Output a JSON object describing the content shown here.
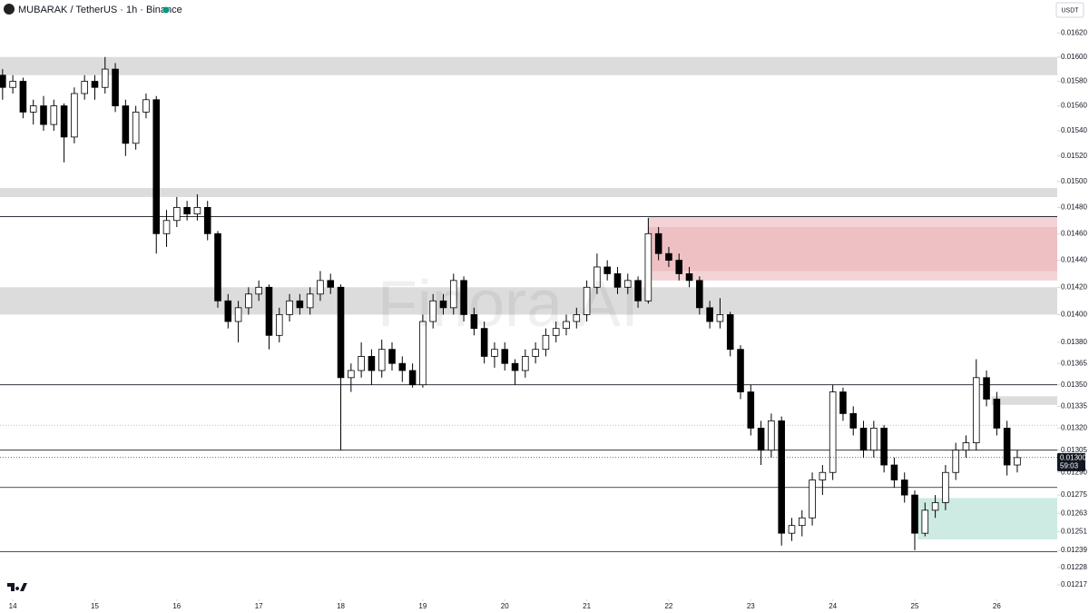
{
  "chart_data": {
    "type": "candlestick",
    "title": "MUBARAK / TetherUS · 1h · Binance",
    "currency": "USDT",
    "watermark": "Finora AI",
    "log_scale": true,
    "ylim": [
      0.01209,
      0.01648
    ],
    "yticks": [
      {
        "value": 0.0162,
        "label": "0.01620"
      },
      {
        "value": 0.016,
        "label": "0.01600"
      },
      {
        "value": 0.0158,
        "label": "0.01580"
      },
      {
        "value": 0.0156,
        "label": "0.01560"
      },
      {
        "value": 0.0154,
        "label": "0.01540"
      },
      {
        "value": 0.0152,
        "label": "0.01520"
      },
      {
        "value": 0.015,
        "label": "0.01500"
      },
      {
        "value": 0.0148,
        "label": "0.01480"
      },
      {
        "value": 0.0146,
        "label": "0.01460"
      },
      {
        "value": 0.0144,
        "label": "0.01440"
      },
      {
        "value": 0.0142,
        "label": "0.01420"
      },
      {
        "value": 0.014,
        "label": "0.01400"
      },
      {
        "value": 0.0138,
        "label": "0.01380"
      },
      {
        "value": 0.01365,
        "label": "0.01365"
      },
      {
        "value": 0.0135,
        "label": "0.01350"
      },
      {
        "value": 0.01335,
        "label": "0.01335"
      },
      {
        "value": 0.0132,
        "label": "0.01320"
      },
      {
        "value": 0.01305,
        "label": "0.01305"
      },
      {
        "value": 0.0129,
        "label": "0.01290"
      },
      {
        "value": 0.01275,
        "label": "0.01275"
      },
      {
        "value": 0.01263,
        "label": "0.01263"
      },
      {
        "value": 0.01251,
        "label": "0.01251"
      },
      {
        "value": 0.01239,
        "label": "0.01239"
      },
      {
        "value": 0.01228,
        "label": "0.01228"
      },
      {
        "value": 0.01217,
        "label": "0.01217"
      }
    ],
    "xlim": [
      -0.25,
      102.9
    ],
    "xticks": [
      {
        "value": 1,
        "label": "14"
      },
      {
        "value": 9,
        "label": "15"
      },
      {
        "value": 17,
        "label": "16"
      },
      {
        "value": 25,
        "label": "17"
      },
      {
        "value": 33,
        "label": "18"
      },
      {
        "value": 41,
        "label": "19"
      },
      {
        "value": 49,
        "label": "20"
      },
      {
        "value": 57,
        "label": "21"
      },
      {
        "value": 65,
        "label": "22"
      },
      {
        "value": 73,
        "label": "23"
      },
      {
        "value": 81,
        "label": "24"
      },
      {
        "value": 89,
        "label": "25"
      },
      {
        "value": 97,
        "label": "26"
      }
    ],
    "up_color": "#ffffff",
    "down_color": "#000000",
    "ohlc": [
      [
        0.01585,
        0.0159,
        0.01565,
        0.01575
      ],
      [
        0.01575,
        0.01585,
        0.0157,
        0.0158
      ],
      [
        0.0158,
        0.01583,
        0.0155,
        0.01555
      ],
      [
        0.01555,
        0.01565,
        0.01545,
        0.0156
      ],
      [
        0.0156,
        0.01568,
        0.0154,
        0.01545
      ],
      [
        0.01545,
        0.01565,
        0.0154,
        0.0156
      ],
      [
        0.0156,
        0.01562,
        0.01515,
        0.01535
      ],
      [
        0.01535,
        0.01575,
        0.0153,
        0.0157
      ],
      [
        0.0157,
        0.01585,
        0.01565,
        0.0158
      ],
      [
        0.0158,
        0.01585,
        0.01565,
        0.01575
      ],
      [
        0.01575,
        0.016,
        0.0157,
        0.0159
      ],
      [
        0.0159,
        0.01595,
        0.01555,
        0.0156
      ],
      [
        0.0156,
        0.01565,
        0.0152,
        0.0153
      ],
      [
        0.0153,
        0.0156,
        0.01525,
        0.01555
      ],
      [
        0.01555,
        0.0157,
        0.0155,
        0.01565
      ],
      [
        0.01565,
        0.01568,
        0.01445,
        0.0146
      ],
      [
        0.0146,
        0.01478,
        0.0145,
        0.0147
      ],
      [
        0.0147,
        0.01488,
        0.01465,
        0.0148
      ],
      [
        0.0148,
        0.01485,
        0.0147,
        0.01475
      ],
      [
        0.01475,
        0.0149,
        0.0147,
        0.0148
      ],
      [
        0.0148,
        0.01485,
        0.01455,
        0.0146
      ],
      [
        0.0146,
        0.01462,
        0.01405,
        0.0141
      ],
      [
        0.0141,
        0.01415,
        0.0139,
        0.01395
      ],
      [
        0.01395,
        0.0141,
        0.0138,
        0.01405
      ],
      [
        0.01405,
        0.0142,
        0.014,
        0.01415
      ],
      [
        0.01415,
        0.01425,
        0.0141,
        0.0142
      ],
      [
        0.0142,
        0.01422,
        0.01375,
        0.01385
      ],
      [
        0.01385,
        0.01405,
        0.0138,
        0.014
      ],
      [
        0.014,
        0.01415,
        0.01395,
        0.0141
      ],
      [
        0.0141,
        0.01415,
        0.014,
        0.01405
      ],
      [
        0.01405,
        0.0142,
        0.014,
        0.01415
      ],
      [
        0.01415,
        0.01432,
        0.0141,
        0.01425
      ],
      [
        0.01425,
        0.0143,
        0.01415,
        0.0142
      ],
      [
        0.0142,
        0.01422,
        0.01305,
        0.01355
      ],
      [
        0.01355,
        0.01365,
        0.01345,
        0.0136
      ],
      [
        0.0136,
        0.0138,
        0.01355,
        0.0137
      ],
      [
        0.0137,
        0.01375,
        0.0135,
        0.0136
      ],
      [
        0.0136,
        0.01382,
        0.01355,
        0.01375
      ],
      [
        0.01375,
        0.0138,
        0.0136,
        0.01365
      ],
      [
        0.01365,
        0.0137,
        0.01352,
        0.0136
      ],
      [
        0.0136,
        0.01365,
        0.01348,
        0.0135
      ],
      [
        0.0135,
        0.014,
        0.01348,
        0.01395
      ],
      [
        0.01395,
        0.01415,
        0.0139,
        0.0141
      ],
      [
        0.0141,
        0.01415,
        0.014,
        0.01405
      ],
      [
        0.01405,
        0.0143,
        0.014,
        0.01425
      ],
      [
        0.01425,
        0.01428,
        0.01395,
        0.014
      ],
      [
        0.014,
        0.01405,
        0.01385,
        0.0139
      ],
      [
        0.0139,
        0.01395,
        0.01365,
        0.0137
      ],
      [
        0.0137,
        0.0138,
        0.01362,
        0.01375
      ],
      [
        0.01375,
        0.0138,
        0.0136,
        0.01365
      ],
      [
        0.01365,
        0.01368,
        0.0135,
        0.0136
      ],
      [
        0.0136,
        0.01375,
        0.01355,
        0.0137
      ],
      [
        0.0137,
        0.0138,
        0.01365,
        0.01375
      ],
      [
        0.01375,
        0.0139,
        0.0137,
        0.01385
      ],
      [
        0.01385,
        0.01395,
        0.0138,
        0.0139
      ],
      [
        0.0139,
        0.014,
        0.01385,
        0.01395
      ],
      [
        0.01395,
        0.01405,
        0.0139,
        0.014
      ],
      [
        0.014,
        0.01425,
        0.01395,
        0.0142
      ],
      [
        0.0142,
        0.01445,
        0.01415,
        0.01435
      ],
      [
        0.01435,
        0.0144,
        0.01425,
        0.0143
      ],
      [
        0.0143,
        0.01435,
        0.01415,
        0.0142
      ],
      [
        0.0142,
        0.0143,
        0.01415,
        0.01425
      ],
      [
        0.01425,
        0.01428,
        0.01405,
        0.0141
      ],
      [
        0.0141,
        0.01472,
        0.01408,
        0.0146
      ],
      [
        0.0146,
        0.01465,
        0.0144,
        0.01445
      ],
      [
        0.01445,
        0.0145,
        0.01435,
        0.0144
      ],
      [
        0.0144,
        0.01445,
        0.01425,
        0.0143
      ],
      [
        0.0143,
        0.01435,
        0.0142,
        0.01425
      ],
      [
        0.01425,
        0.01428,
        0.014,
        0.01405
      ],
      [
        0.01405,
        0.0141,
        0.0139,
        0.01395
      ],
      [
        0.01395,
        0.01412,
        0.0139,
        0.014
      ],
      [
        0.014,
        0.01402,
        0.0137,
        0.01375
      ],
      [
        0.01375,
        0.01378,
        0.0134,
        0.01345
      ],
      [
        0.01345,
        0.0135,
        0.01315,
        0.0132
      ],
      [
        0.0132,
        0.01325,
        0.01295,
        0.01305
      ],
      [
        0.01305,
        0.0133,
        0.013,
        0.01325
      ],
      [
        0.01325,
        0.01328,
        0.01242,
        0.0125
      ],
      [
        0.0125,
        0.0126,
        0.01245,
        0.01255
      ],
      [
        0.01255,
        0.01265,
        0.01248,
        0.0126
      ],
      [
        0.0126,
        0.0129,
        0.01255,
        0.01285
      ],
      [
        0.01285,
        0.01295,
        0.01275,
        0.0129
      ],
      [
        0.0129,
        0.0135,
        0.01285,
        0.01345
      ],
      [
        0.01345,
        0.01348,
        0.01325,
        0.0133
      ],
      [
        0.0133,
        0.01335,
        0.01315,
        0.0132
      ],
      [
        0.0132,
        0.01325,
        0.013,
        0.01305
      ],
      [
        0.01305,
        0.01325,
        0.013,
        0.0132
      ],
      [
        0.0132,
        0.01322,
        0.0129,
        0.01295
      ],
      [
        0.01295,
        0.013,
        0.0128,
        0.01285
      ],
      [
        0.01285,
        0.0129,
        0.0127,
        0.01275
      ],
      [
        0.01275,
        0.01278,
        0.01239,
        0.0125
      ],
      [
        0.0125,
        0.0127,
        0.01248,
        0.01265
      ],
      [
        0.01265,
        0.01275,
        0.0126,
        0.0127
      ],
      [
        0.0127,
        0.01295,
        0.01265,
        0.0129
      ],
      [
        0.0129,
        0.0131,
        0.01285,
        0.01305
      ],
      [
        0.01305,
        0.01315,
        0.013,
        0.0131
      ],
      [
        0.0131,
        0.01368,
        0.01305,
        0.01355
      ],
      [
        0.01355,
        0.0136,
        0.01335,
        0.0134
      ],
      [
        0.0134,
        0.01345,
        0.01315,
        0.0132
      ],
      [
        0.0132,
        0.01325,
        0.01288,
        0.01295
      ],
      [
        0.01295,
        0.01305,
        0.0129,
        0.013
      ]
    ],
    "zones": [
      {
        "low": 0.01585,
        "high": 0.016,
        "start": -0.25,
        "color": "#dcdcdc"
      },
      {
        "low": 0.01488,
        "high": 0.01495,
        "start": -0.25,
        "color": "#dcdcdc"
      },
      {
        "low": 0.014,
        "high": 0.0142,
        "start": -0.25,
        "color": "#dcdcdc"
      },
      {
        "low": 0.01336,
        "high": 0.01342,
        "start": 96.5,
        "color": "#dcdcdc"
      },
      {
        "low": 0.01425,
        "high": 0.01473,
        "start": 63,
        "color": "#f3d3d5"
      },
      {
        "low": 0.01432,
        "high": 0.01465,
        "start": 63,
        "color": "#eec0c3"
      },
      {
        "low": 0.01246,
        "high": 0.01273,
        "start": 89.3,
        "color": "#cdebe2"
      }
    ],
    "levels": [
      {
        "value": 0.01473,
        "style": "solid"
      },
      {
        "value": 0.0135,
        "style": "solid"
      },
      {
        "value": 0.01305,
        "style": "solid"
      },
      {
        "value": 0.0128,
        "style": "solid"
      },
      {
        "value": 0.01238,
        "style": "solid"
      },
      {
        "value": 0.01322,
        "style": "dotted"
      }
    ],
    "last_price": {
      "value": 0.013,
      "label": "0.01300",
      "countdown": "59:03",
      "color": "#131722"
    }
  }
}
